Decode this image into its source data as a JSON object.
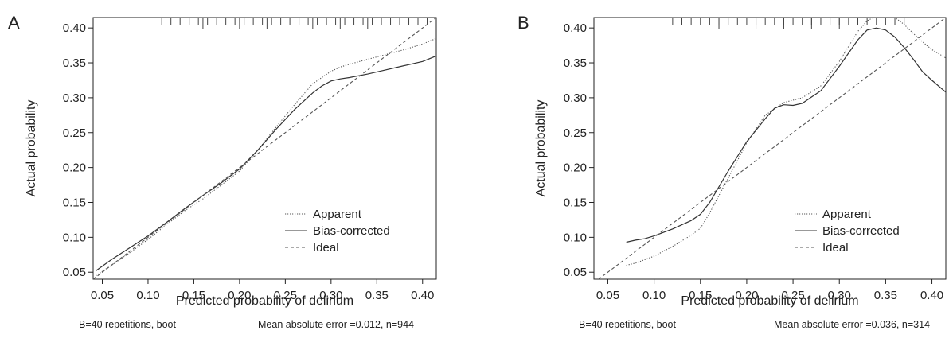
{
  "chart_data": [
    {
      "panel_label": "A",
      "type": "line",
      "xlabel": "Predicted probability of delirium",
      "ylabel": "Actual probability",
      "xlim": [
        0.04,
        0.415
      ],
      "ylim": [
        0.04,
        0.415
      ],
      "x_ticks": [
        "0.05",
        "0.10",
        "0.15",
        "0.20",
        "0.25",
        "0.30",
        "0.35",
        "0.40"
      ],
      "y_ticks": [
        "0.05",
        "0.10",
        "0.15",
        "0.20",
        "0.25",
        "0.30",
        "0.35",
        "0.40"
      ],
      "footnote_left": "B=40 repetitions, boot",
      "footnote_right": "Mean absolute error =0.012, n=944",
      "legend": {
        "position": "bottom-right",
        "entries": [
          "Apparent",
          "Bias-corrected",
          "Ideal"
        ]
      },
      "series": [
        {
          "name": "Apparent",
          "style": "dotted",
          "x": [
            0.043,
            0.06,
            0.08,
            0.1,
            0.12,
            0.14,
            0.16,
            0.18,
            0.2,
            0.22,
            0.24,
            0.26,
            0.28,
            0.3,
            0.31,
            0.32,
            0.34,
            0.36,
            0.38,
            0.4,
            0.415
          ],
          "y": [
            0.045,
            0.06,
            0.078,
            0.097,
            0.118,
            0.138,
            0.155,
            0.175,
            0.195,
            0.225,
            0.258,
            0.29,
            0.32,
            0.338,
            0.344,
            0.348,
            0.355,
            0.362,
            0.369,
            0.377,
            0.385
          ]
        },
        {
          "name": "Bias-corrected",
          "style": "solid",
          "x": [
            0.043,
            0.06,
            0.08,
            0.1,
            0.12,
            0.14,
            0.16,
            0.18,
            0.2,
            0.22,
            0.24,
            0.26,
            0.28,
            0.29,
            0.3,
            0.31,
            0.32,
            0.34,
            0.36,
            0.38,
            0.4,
            0.415
          ],
          "y": [
            0.052,
            0.068,
            0.085,
            0.102,
            0.121,
            0.141,
            0.16,
            0.178,
            0.198,
            0.225,
            0.255,
            0.283,
            0.307,
            0.317,
            0.324,
            0.327,
            0.329,
            0.334,
            0.34,
            0.346,
            0.352,
            0.36
          ]
        },
        {
          "name": "Ideal",
          "style": "dashed",
          "x": [
            0.04,
            0.415
          ],
          "y": [
            0.04,
            0.415
          ]
        }
      ],
      "rug_ticks": [
        0.115,
        0.125,
        0.135,
        0.145,
        0.155,
        0.165,
        0.175,
        0.185,
        0.195,
        0.205,
        0.215,
        0.225,
        0.235,
        0.245,
        0.255,
        0.265,
        0.275,
        0.285,
        0.295,
        0.305,
        0.315,
        0.325,
        0.335,
        0.345,
        0.355,
        0.365,
        0.375,
        0.385,
        0.395,
        0.405
      ],
      "rug_tall": [
        0.16,
        0.2,
        0.23,
        0.28,
        0.31,
        0.34
      ]
    },
    {
      "panel_label": "B",
      "type": "line",
      "xlabel": "Predicted probability of delirium",
      "ylabel": "Actual probability",
      "xlim": [
        0.035,
        0.415
      ],
      "ylim": [
        0.04,
        0.415
      ],
      "x_ticks": [
        "0.05",
        "0.10",
        "0.15",
        "0.20",
        "0.25",
        "0.30",
        "0.35",
        "0.40"
      ],
      "y_ticks": [
        "0.05",
        "0.10",
        "0.15",
        "0.20",
        "0.25",
        "0.30",
        "0.35",
        "0.40"
      ],
      "footnote_left": "B=40 repetitions, boot",
      "footnote_right": "Mean absolute error =0.036, n=314",
      "legend": {
        "position": "bottom-right",
        "entries": [
          "Apparent",
          "Bias-corrected",
          "Ideal"
        ]
      },
      "series": [
        {
          "name": "Apparent",
          "style": "dotted",
          "x": [
            0.07,
            0.08,
            0.1,
            0.12,
            0.14,
            0.15,
            0.16,
            0.18,
            0.2,
            0.22,
            0.24,
            0.26,
            0.28,
            0.3,
            0.32,
            0.33,
            0.34,
            0.35,
            0.36,
            0.37,
            0.38,
            0.39,
            0.4,
            0.415
          ],
          "y": [
            0.06,
            0.063,
            0.073,
            0.087,
            0.103,
            0.113,
            0.135,
            0.185,
            0.235,
            0.275,
            0.293,
            0.3,
            0.317,
            0.352,
            0.395,
            0.41,
            0.418,
            0.42,
            0.415,
            0.405,
            0.392,
            0.38,
            0.369,
            0.357
          ]
        },
        {
          "name": "Bias-corrected",
          "style": "solid",
          "x": [
            0.07,
            0.08,
            0.09,
            0.1,
            0.12,
            0.14,
            0.15,
            0.16,
            0.18,
            0.2,
            0.22,
            0.23,
            0.24,
            0.25,
            0.26,
            0.28,
            0.3,
            0.32,
            0.33,
            0.34,
            0.35,
            0.36,
            0.37,
            0.38,
            0.39,
            0.4,
            0.415
          ],
          "y": [
            0.093,
            0.096,
            0.098,
            0.102,
            0.112,
            0.124,
            0.133,
            0.15,
            0.195,
            0.237,
            0.27,
            0.285,
            0.29,
            0.289,
            0.292,
            0.31,
            0.345,
            0.383,
            0.397,
            0.4,
            0.397,
            0.387,
            0.372,
            0.355,
            0.337,
            0.325,
            0.308
          ]
        },
        {
          "name": "Ideal",
          "style": "dashed",
          "x": [
            0.035,
            0.415
          ],
          "y": [
            0.035,
            0.415
          ]
        }
      ],
      "rug_ticks": [
        0.12,
        0.13,
        0.14,
        0.15,
        0.16,
        0.17,
        0.18,
        0.19,
        0.2,
        0.21,
        0.22,
        0.23,
        0.24,
        0.25,
        0.26,
        0.27,
        0.28,
        0.29,
        0.3,
        0.31,
        0.32,
        0.33,
        0.34,
        0.35,
        0.36,
        0.37
      ],
      "rug_tall": [
        0.17,
        0.21,
        0.24,
        0.27,
        0.3
      ]
    }
  ]
}
